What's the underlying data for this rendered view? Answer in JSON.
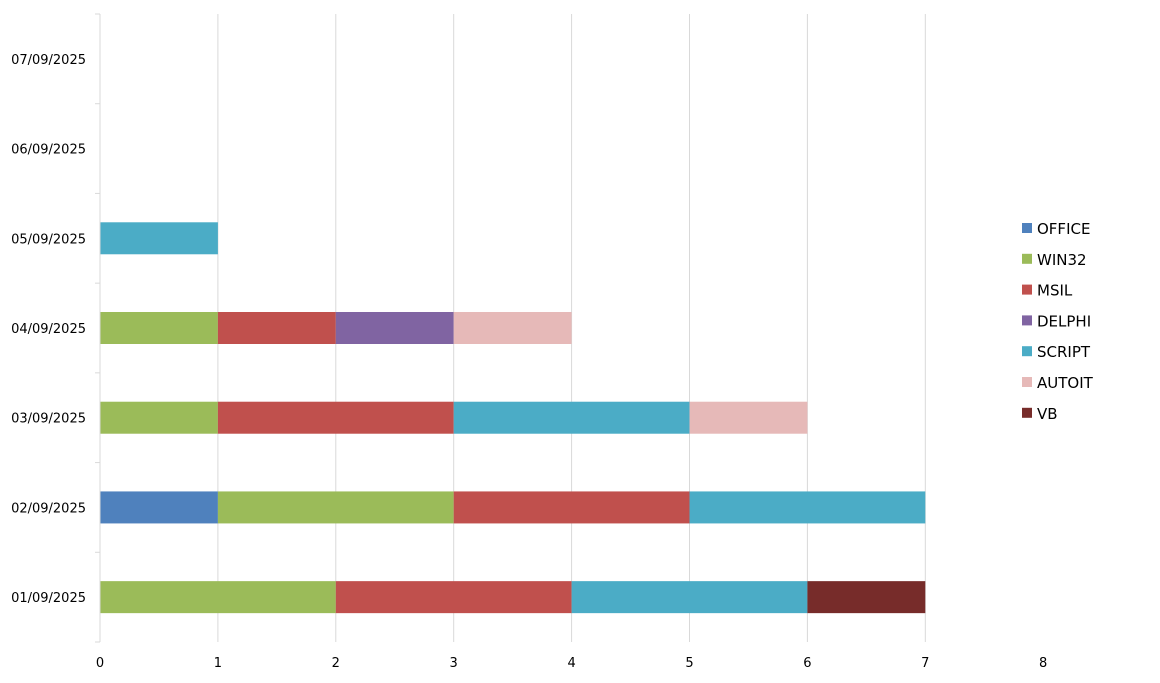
{
  "chart_data": {
    "type": "bar",
    "orientation": "horizontal",
    "stacked": true,
    "title": "",
    "xlabel": "",
    "ylabel": "",
    "xlim": [
      0,
      8
    ],
    "x_ticks": [
      0,
      1,
      2,
      3,
      4,
      5,
      6,
      7,
      8
    ],
    "grid": "vertical",
    "legend_position": "right",
    "categories": [
      "01/09/2025",
      "02/09/2025",
      "03/09/2025",
      "04/09/2025",
      "05/09/2025",
      "06/09/2025",
      "07/09/2025"
    ],
    "series": [
      {
        "name": "OFFICE",
        "color": "#4F81BD",
        "values": [
          0,
          1,
          0,
          0,
          0,
          0,
          0
        ]
      },
      {
        "name": "WIN32",
        "color": "#9BBB59",
        "values": [
          2,
          2,
          1,
          1,
          0,
          0,
          0
        ]
      },
      {
        "name": "MSIL",
        "color": "#C0504D",
        "values": [
          2,
          2,
          2,
          1,
          0,
          0,
          0
        ]
      },
      {
        "name": "DELPHI",
        "color": "#8064A2",
        "values": [
          0,
          0,
          0,
          1,
          0,
          0,
          0
        ]
      },
      {
        "name": "SCRIPT",
        "color": "#4BACC6",
        "values": [
          2,
          2,
          2,
          0,
          1,
          0,
          0
        ]
      },
      {
        "name": "AUTOIT",
        "color": "#E6B9B8",
        "values": [
          0,
          0,
          1,
          1,
          0,
          0,
          0
        ]
      },
      {
        "name": "VB",
        "color": "#772C2A",
        "values": [
          1,
          0,
          0,
          0,
          0,
          0,
          0
        ]
      }
    ]
  }
}
